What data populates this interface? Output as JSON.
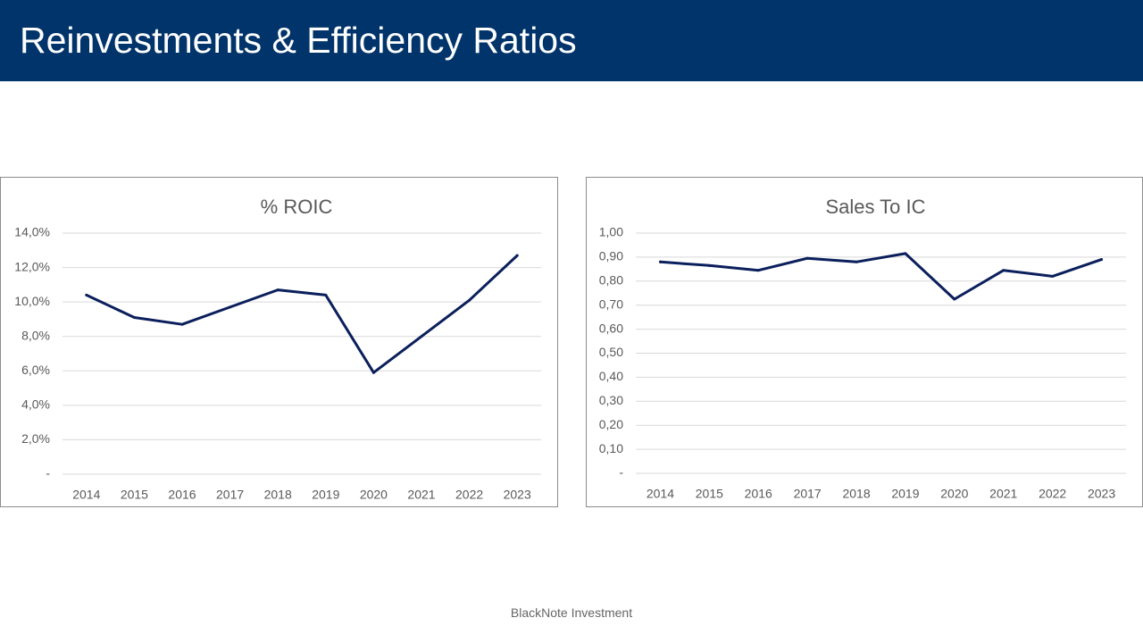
{
  "header": {
    "title": "Reinvestments & Efficiency Ratios"
  },
  "footer": {
    "text": "BlackNote Investment"
  },
  "chart_data": [
    {
      "type": "line",
      "title": "% ROIC",
      "categories": [
        "2014",
        "2015",
        "2016",
        "2017",
        "2018",
        "2019",
        "2020",
        "2021",
        "2022",
        "2023"
      ],
      "values": [
        10.4,
        9.1,
        8.7,
        9.7,
        10.7,
        10.4,
        5.9,
        8.0,
        10.1,
        12.7
      ],
      "ylim": [
        0,
        14
      ],
      "yticks": [
        0,
        2,
        4,
        6,
        8,
        10,
        12,
        14
      ],
      "ytick_labels": [
        "-",
        "2,0%",
        "4,0%",
        "6,0%",
        "8,0%",
        "10,0%",
        "12,0%",
        "14,0%"
      ],
      "grid": true,
      "line_color": "#0B1F5C"
    },
    {
      "type": "line",
      "title": "Sales To IC",
      "categories": [
        "2014",
        "2015",
        "2016",
        "2017",
        "2018",
        "2019",
        "2020",
        "2021",
        "2022",
        "2023"
      ],
      "values": [
        0.88,
        0.865,
        0.845,
        0.895,
        0.88,
        0.915,
        0.725,
        0.845,
        0.82,
        0.89
      ],
      "ylim": [
        0,
        1.0
      ],
      "yticks": [
        0,
        0.1,
        0.2,
        0.3,
        0.4,
        0.5,
        0.6,
        0.7,
        0.8,
        0.9,
        1.0
      ],
      "ytick_labels": [
        "-",
        "0,10",
        "0,20",
        "0,30",
        "0,40",
        "0,50",
        "0,60",
        "0,70",
        "0,80",
        "0,90",
        "1,00"
      ],
      "grid": true,
      "line_color": "#0B1F5C"
    }
  ]
}
